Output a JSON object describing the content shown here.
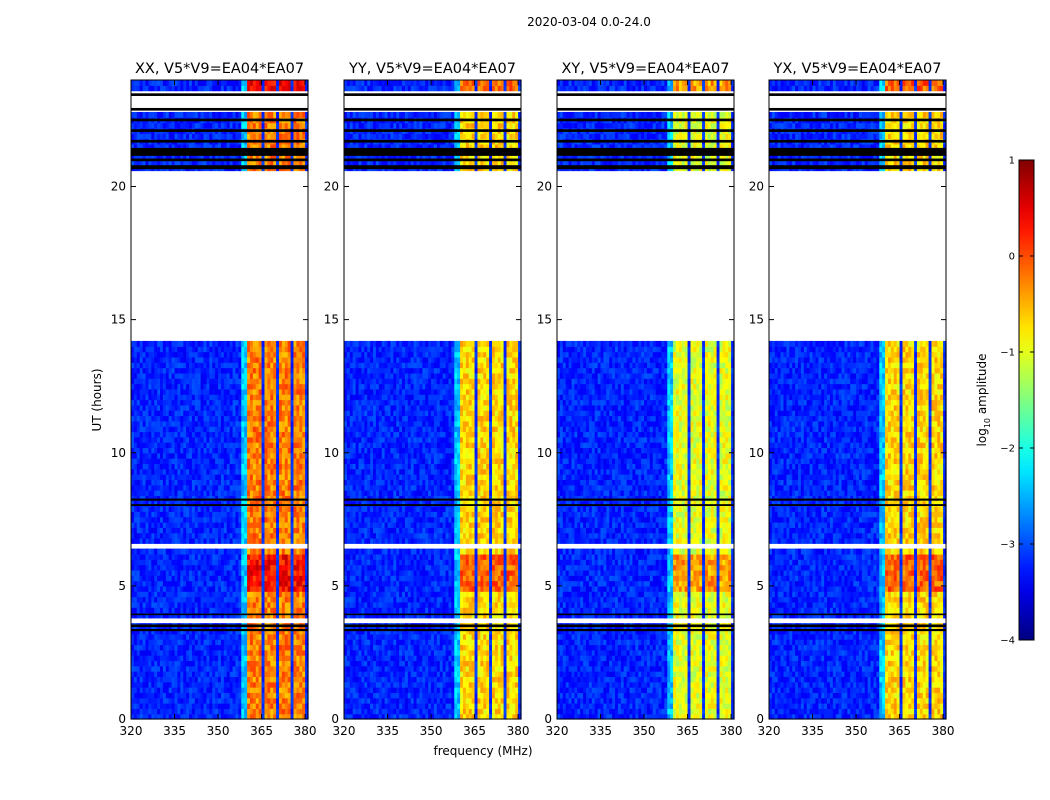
{
  "chart_data": {
    "type": "heatmap",
    "suptitle": "2020-03-04 0.0-24.0",
    "xlabel": "frequency (MHz)",
    "ylabel": "UT (hours)",
    "xlim": [
      320,
      381
    ],
    "ylim": [
      0,
      24
    ],
    "xticks": [
      320,
      335,
      350,
      365,
      380
    ],
    "yticks": [
      0,
      5,
      10,
      15,
      20
    ],
    "colorbar": {
      "label": "log₁₀ amplitude",
      "label_main": "log",
      "label_sub": "10",
      "label_rest": " amplitude",
      "range": [
        -4,
        1
      ],
      "ticks": [
        1,
        0,
        -1,
        -2,
        -3,
        -4
      ],
      "tick_labels": [
        "1",
        "0",
        "−1",
        "−2",
        "−3",
        "−4"
      ],
      "colormap": "jet"
    },
    "panels": [
      {
        "title": "XX, V5*V9=EA04*EA07",
        "band_level": 0.75
      },
      {
        "title": "YY, V5*V9=EA04*EA07",
        "band_level": 0.66
      },
      {
        "title": "XY, V5*V9=EA04*EA07",
        "band_level": 0.6
      },
      {
        "title": "YX, V5*V9=EA04*EA07",
        "band_level": 0.66
      }
    ],
    "band_channels": [
      [
        360,
        364
      ],
      [
        365,
        369
      ],
      [
        370,
        374
      ],
      [
        375,
        379
      ]
    ],
    "background_level": 0.14,
    "no_data_hours": [
      [
        14.3,
        20.6
      ],
      [
        3.6,
        3.85
      ],
      [
        6.45,
        6.62
      ],
      [
        22.9,
        23.5
      ]
    ],
    "flagged_hours": [
      [
        20.65,
        20.8
      ],
      [
        20.95,
        21.05
      ],
      [
        21.15,
        21.45
      ],
      [
        21.65,
        21.75
      ],
      [
        22.05,
        22.15
      ],
      [
        22.45,
        22.55
      ],
      [
        22.85,
        22.95
      ],
      [
        23.4,
        23.5
      ],
      [
        3.3,
        3.38
      ],
      [
        3.45,
        3.55
      ],
      [
        3.9,
        3.96
      ],
      [
        8.0,
        8.07
      ],
      [
        8.2,
        8.28
      ]
    ],
    "high_activity_hours": [
      [
        4.8,
        6.3
      ],
      [
        23.5,
        24.0
      ]
    ]
  }
}
